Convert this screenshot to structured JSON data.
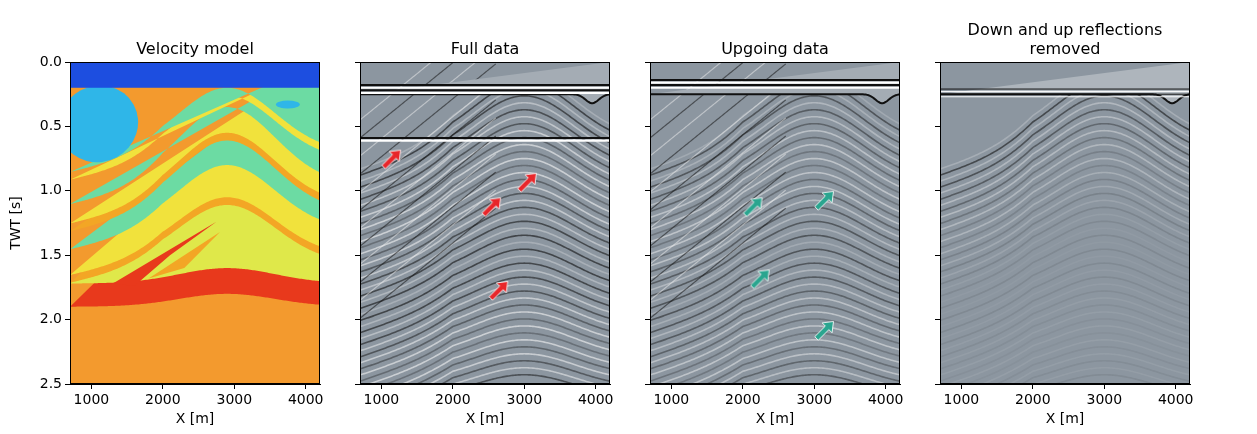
{
  "chart_data": [
    {
      "type": "velocity_model",
      "title": "Velocity model",
      "x_label": "X [m]",
      "y_label": "TWT [s]",
      "xlim": [
        700,
        4200
      ],
      "xticks": [
        1000,
        2000,
        3000,
        4000
      ],
      "ylim": [
        0,
        2.5
      ],
      "yticks": [
        {
          "value": 0,
          "label": "0.0"
        },
        {
          "value": 0.5,
          "label": "0.5"
        },
        {
          "value": 1,
          "label": "1.0"
        },
        {
          "value": 1.5,
          "label": "1.5"
        },
        {
          "value": 2,
          "label": "2.0"
        },
        {
          "value": 2.5,
          "label": "2.5"
        }
      ]
    },
    {
      "type": "seismic",
      "title": "Full data",
      "x_label": "X [m]",
      "xlim": [
        700,
        4200
      ],
      "xticks": [
        1000,
        2000,
        3000,
        4000
      ],
      "ylim": [
        0,
        2.5
      ],
      "yticks": [
        0,
        0.5,
        1,
        1.5,
        2,
        2.5
      ],
      "tick_labels": "x",
      "color": "#e8262a",
      "arrows": [
        {
          "x": 1150,
          "y": 0.75
        },
        {
          "x": 2550,
          "y": 1.12
        },
        {
          "x": 3050,
          "y": 0.93
        },
        {
          "x": 2650,
          "y": 1.77
        }
      ]
    },
    {
      "type": "seismic",
      "title": "Upgoing data",
      "x_label": "X [m]",
      "xlim": [
        700,
        4200
      ],
      "xticks": [
        1000,
        2000,
        3000,
        4000
      ],
      "ylim": [
        0,
        2.5
      ],
      "yticks": [
        0,
        0.5,
        1,
        1.5,
        2,
        2.5
      ],
      "tick_labels": "x",
      "color": "#2aa58f",
      "arrows": [
        {
          "x": 2150,
          "y": 1.12
        },
        {
          "x": 3150,
          "y": 1.07
        },
        {
          "x": 2250,
          "y": 1.68
        },
        {
          "x": 3150,
          "y": 2.08
        }
      ]
    },
    {
      "type": "seismic",
      "title": "Down and up reflections removed",
      "x_label": "X [m]",
      "xlim": [
        700,
        4200
      ],
      "xticks": [
        1000,
        2000,
        3000,
        4000
      ],
      "ylim": [
        0,
        2.5
      ],
      "yticks": [
        0,
        0.5,
        1,
        1.5,
        2,
        2.5
      ],
      "tick_labels": "x"
    }
  ]
}
